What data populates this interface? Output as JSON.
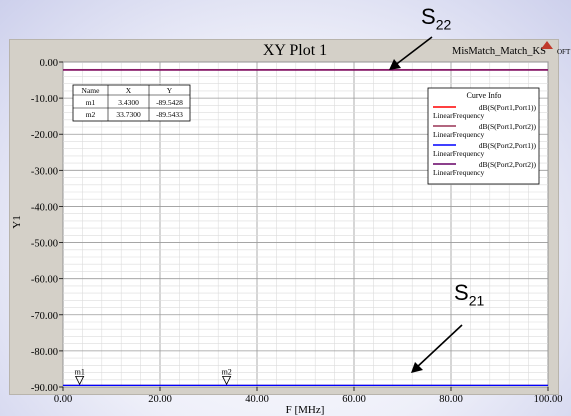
{
  "chart_data": {
    "type": "line",
    "title": "XY Plot 1",
    "project": "MisMatch_Match_KS",
    "logo_text": "OFT",
    "xlabel": "F [MHz]",
    "ylabel": "Y1",
    "xlim": [
      0,
      100
    ],
    "ylim": [
      -90,
      0
    ],
    "x_ticks": [
      "0.00",
      "20.00",
      "40.00",
      "60.00",
      "80.00",
      "100.00"
    ],
    "y_ticks": [
      "0.00",
      "-10.00",
      "-20.00",
      "-30.00",
      "-40.00",
      "-50.00",
      "-60.00",
      "-70.00",
      "-80.00",
      "-90.00"
    ],
    "grid": true,
    "series": [
      {
        "name": "dB(S(Port1,Port1))",
        "sub": "LinearFrequency",
        "color": "#ff0000",
        "x": [
          0,
          100
        ],
        "values": [
          -2.2,
          -2.2
        ]
      },
      {
        "name": "dB(S(Port1,Port2))",
        "sub": "LinearFrequency",
        "color": "#993355",
        "x": [
          0,
          100
        ],
        "values": [
          -89.54,
          -89.54
        ]
      },
      {
        "name": "dB(S(Port2,Port1))",
        "sub": "LinearFrequency",
        "color": "#0000ff",
        "x": [
          0,
          100
        ],
        "values": [
          -89.54,
          -89.54
        ]
      },
      {
        "name": "dB(S(Port2,Port2))",
        "sub": "LinearFrequency",
        "color": "#660066",
        "x": [
          0,
          100
        ],
        "values": [
          -2.2,
          -2.2
        ]
      }
    ],
    "legend_title": "Curve Info",
    "legend_position": "top-right",
    "marker_table": {
      "headers": [
        "Name",
        "X",
        "Y"
      ],
      "rows": [
        [
          "m1",
          "3.4300",
          "-89.5428"
        ],
        [
          "m2",
          "33.7300",
          "-89.5433"
        ]
      ]
    },
    "markers": [
      {
        "name": "m1",
        "x": 3.43,
        "y": -89.5428
      },
      {
        "name": "m2",
        "x": 33.73,
        "y": -89.5433
      }
    ],
    "annotations": [
      {
        "id": "s22",
        "main": "S",
        "sub": "22"
      },
      {
        "id": "s21",
        "main": "S",
        "sub": "21"
      }
    ]
  }
}
